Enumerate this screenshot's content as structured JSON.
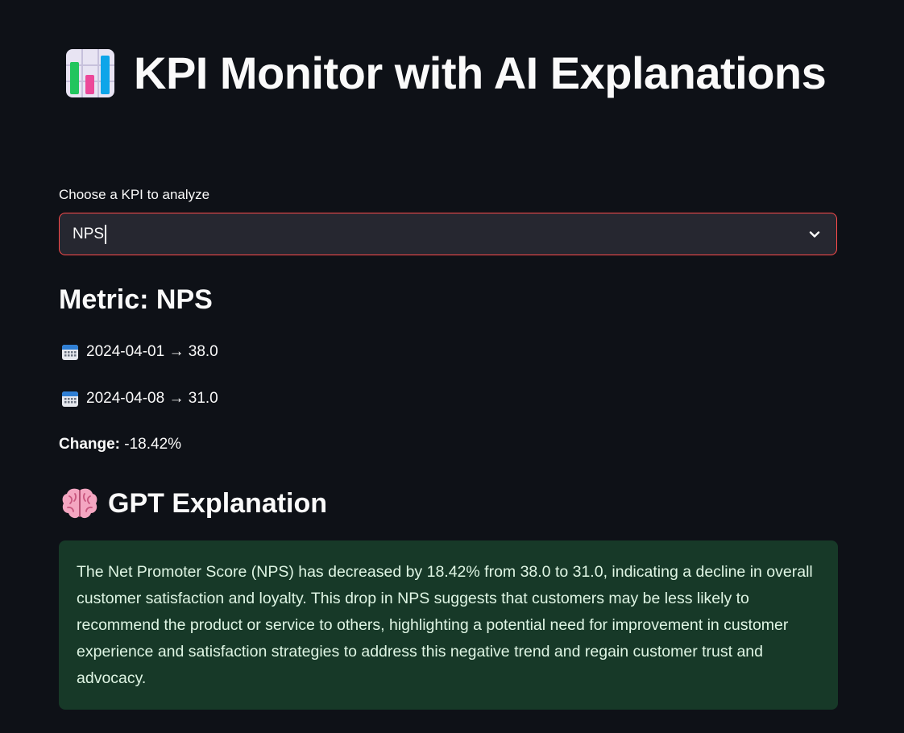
{
  "header": {
    "title": "KPI Monitor with AI Explanations",
    "icon": "bar-chart-icon"
  },
  "kpi_select": {
    "label": "Choose a KPI to analyze",
    "value": "NPS",
    "chevron_icon": "chevron-down-icon",
    "border_color": "#ff4b4b"
  },
  "metric": {
    "heading": "Metric: NPS",
    "entries": [
      {
        "icon": "calendar-icon",
        "text": "2024-04-01 → 38.0"
      },
      {
        "icon": "calendar-icon",
        "text": "2024-04-08 → 31.0"
      }
    ],
    "change_label": "Change:",
    "change_value": "-18.42%"
  },
  "explanation": {
    "icon": "brain-icon",
    "heading": "GPT Explanation",
    "text": "The Net Promoter Score (NPS) has decreased by 18.42% from 38.0 to 31.0, indicating a decline in overall customer satisfaction and loyalty. This drop in NPS suggests that customers may be less likely to recommend the product or service to others, highlighting a potential need for improvement in customer experience and satisfaction strategies to address this negative trend and regain customer trust and advocacy.",
    "box_color": "#173928"
  }
}
